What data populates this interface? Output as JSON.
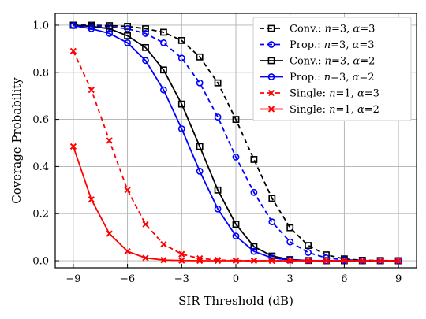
{
  "chart_data": {
    "type": "line",
    "xlabel": "SIR Threshold (dB)",
    "ylabel": "Coverage Probability",
    "xlim": [
      -10,
      10
    ],
    "ylim": [
      -0.03,
      1.05
    ],
    "xticks": [
      -9,
      -6,
      -3,
      0,
      3,
      6,
      9
    ],
    "yticks": [
      0.0,
      0.2,
      0.4,
      0.6,
      0.8,
      1.0
    ],
    "xtick_labels": [
      "−9",
      "−6",
      "−3",
      "0",
      "3",
      "6",
      "9"
    ],
    "ytick_labels": [
      "0.0",
      "0.2",
      "0.4",
      "0.6",
      "0.8",
      "1.0"
    ],
    "grid": true,
    "legend_position": "top-right",
    "x": [
      -9,
      -8,
      -7,
      -6,
      -5,
      -4,
      -3,
      -2,
      -1,
      0,
      1,
      2,
      3,
      4,
      5,
      6,
      7,
      8,
      9
    ],
    "series": [
      {
        "name": "Conv.: n=3, α=3",
        "legend": {
          "prefix": "Conv.: ",
          "n": "3",
          "alpha": "3"
        },
        "color": "#000000",
        "linestyle": "dashed",
        "marker": "square",
        "values": [
          1.0,
          1.0,
          0.998,
          0.995,
          0.985,
          0.97,
          0.935,
          0.865,
          0.755,
          0.6,
          0.43,
          0.265,
          0.14,
          0.065,
          0.025,
          0.008,
          0.002,
          0.001,
          0.0
        ]
      },
      {
        "name": "Prop.: n=3, α=3",
        "legend": {
          "prefix": "Prop.: ",
          "n": "3",
          "alpha": "3"
        },
        "color": "#0000ff",
        "linestyle": "dashed",
        "marker": "circle",
        "values": [
          1.0,
          0.998,
          0.993,
          0.985,
          0.965,
          0.925,
          0.86,
          0.755,
          0.61,
          0.44,
          0.29,
          0.165,
          0.08,
          0.035,
          0.012,
          0.004,
          0.001,
          0.0,
          0.0
        ]
      },
      {
        "name": "Conv.: n=3, α=2",
        "legend": {
          "prefix": "Conv.: ",
          "n": "3",
          "alpha": "2"
        },
        "color": "#000000",
        "linestyle": "solid",
        "marker": "square",
        "values": [
          1.0,
          0.995,
          0.985,
          0.955,
          0.905,
          0.81,
          0.665,
          0.485,
          0.3,
          0.155,
          0.06,
          0.02,
          0.005,
          0.001,
          0.0,
          0.0,
          0.0,
          0.0,
          0.0
        ]
      },
      {
        "name": "Prop.: n=3, α=2",
        "legend": {
          "prefix": "Prop.: ",
          "n": "3",
          "alpha": "2"
        },
        "color": "#0000ff",
        "linestyle": "solid",
        "marker": "circle",
        "values": [
          0.998,
          0.985,
          0.965,
          0.925,
          0.85,
          0.725,
          0.56,
          0.38,
          0.22,
          0.105,
          0.04,
          0.012,
          0.003,
          0.001,
          0.0,
          0.0,
          0.0,
          0.0,
          0.0
        ]
      },
      {
        "name": "Single: n=1, α=3",
        "legend": {
          "prefix": "Single: ",
          "n": "1",
          "alpha": "3"
        },
        "color": "#ff0000",
        "linestyle": "dashed",
        "marker": "x",
        "values": [
          0.89,
          0.725,
          0.51,
          0.3,
          0.155,
          0.07,
          0.028,
          0.01,
          0.003,
          0.001,
          0.0,
          0.0,
          0.0,
          0.0,
          0.0,
          0.0,
          0.0,
          0.0,
          0.0
        ]
      },
      {
        "name": "Single: n=1, α=2",
        "legend": {
          "prefix": "Single: ",
          "n": "1",
          "alpha": "2"
        },
        "color": "#ff0000",
        "linestyle": "solid",
        "marker": "x",
        "values": [
          0.485,
          0.26,
          0.115,
          0.04,
          0.012,
          0.003,
          0.001,
          0.0,
          0.0,
          0.0,
          0.0,
          0.0,
          0.0,
          0.0,
          0.0,
          0.0,
          0.0,
          0.0,
          0.0
        ]
      }
    ]
  }
}
